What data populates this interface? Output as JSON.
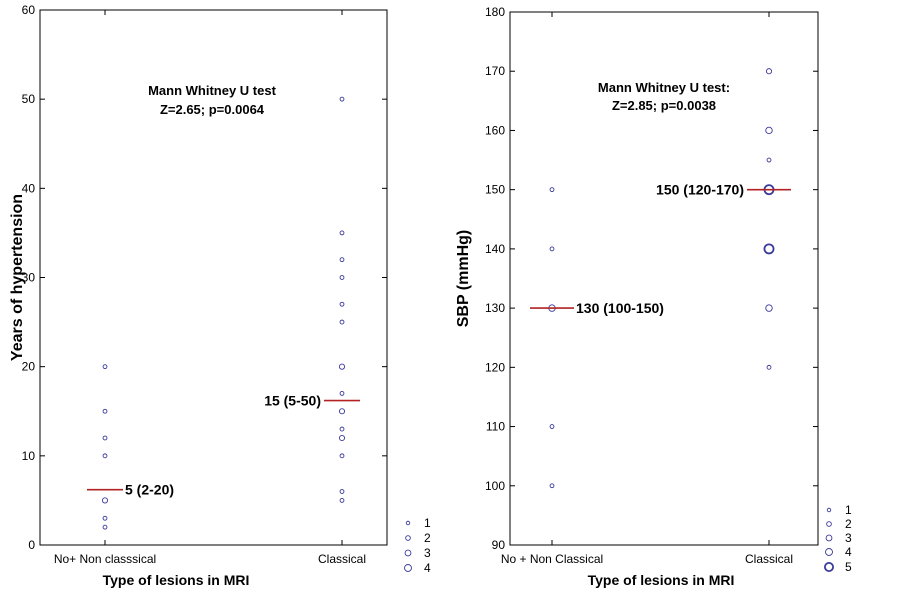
{
  "colors": {
    "marker": "#3a3a9a",
    "median": "#b22222",
    "frame": "#000000"
  },
  "chart_data": [
    {
      "type": "scatter",
      "xlabel": "Type of lesions in MRI",
      "ylabel": "Years of hypertension",
      "ylim": [
        0,
        60
      ],
      "yticks": [
        0,
        10,
        20,
        30,
        40,
        50,
        60
      ],
      "categories": [
        "No+ Non classsical",
        "Classical"
      ],
      "annotation": [
        "Mann Whitney U test",
        "Z=2.65; p=0.0064"
      ],
      "points": [
        {
          "category": "No+ Non classsical",
          "y": 20,
          "count": 1
        },
        {
          "category": "No+ Non classsical",
          "y": 15,
          "count": 1
        },
        {
          "category": "No+ Non classsical",
          "y": 12,
          "count": 1
        },
        {
          "category": "No+ Non classsical",
          "y": 10,
          "count": 1
        },
        {
          "category": "No+ Non classsical",
          "y": 5,
          "count": 2
        },
        {
          "category": "No+ Non classsical",
          "y": 3,
          "count": 1
        },
        {
          "category": "No+ Non classsical",
          "y": 2,
          "count": 1
        },
        {
          "category": "Classical",
          "y": 50,
          "count": 1
        },
        {
          "category": "Classical",
          "y": 35,
          "count": 1
        },
        {
          "category": "Classical",
          "y": 32,
          "count": 1
        },
        {
          "category": "Classical",
          "y": 30,
          "count": 1
        },
        {
          "category": "Classical",
          "y": 27,
          "count": 1
        },
        {
          "category": "Classical",
          "y": 25,
          "count": 1
        },
        {
          "category": "Classical",
          "y": 20,
          "count": 2
        },
        {
          "category": "Classical",
          "y": 17,
          "count": 1
        },
        {
          "category": "Classical",
          "y": 15,
          "count": 2
        },
        {
          "category": "Classical",
          "y": 13,
          "count": 1
        },
        {
          "category": "Classical",
          "y": 12,
          "count": 2
        },
        {
          "category": "Classical",
          "y": 10,
          "count": 1
        },
        {
          "category": "Classical",
          "y": 6,
          "count": 1
        },
        {
          "category": "Classical",
          "y": 5,
          "count": 1
        }
      ],
      "medians": [
        {
          "category": "No+ Non classsical",
          "y": 6.2,
          "label": "5 (2-20)",
          "label_side": "right"
        },
        {
          "category": "Classical",
          "y": 16.2,
          "label": "15 (5-50)",
          "label_side": "left"
        }
      ],
      "legend": [
        "1",
        "2",
        "3",
        "4"
      ]
    },
    {
      "type": "scatter",
      "xlabel": "Type of lesions in MRI",
      "ylabel": "SBP (mmHg)",
      "ylim": [
        90,
        180
      ],
      "yticks": [
        90,
        100,
        110,
        120,
        130,
        140,
        150,
        160,
        170,
        180
      ],
      "categories": [
        "No + Non Classical",
        "Classical"
      ],
      "annotation": [
        "Mann Whitney U test:",
        "Z=2.85; p=0.0038"
      ],
      "points": [
        {
          "category": "No + Non Classical",
          "y": 150,
          "count": 1
        },
        {
          "category": "No + Non Classical",
          "y": 140,
          "count": 1
        },
        {
          "category": "No + Non Classical",
          "y": 130,
          "count": 3
        },
        {
          "category": "No + Non Classical",
          "y": 110,
          "count": 1
        },
        {
          "category": "No + Non Classical",
          "y": 100,
          "count": 1
        },
        {
          "category": "Classical",
          "y": 170,
          "count": 2
        },
        {
          "category": "Classical",
          "y": 160,
          "count": 3
        },
        {
          "category": "Classical",
          "y": 155,
          "count": 1
        },
        {
          "category": "Classical",
          "y": 150,
          "count": 5
        },
        {
          "category": "Classical",
          "y": 140,
          "count": 5
        },
        {
          "category": "Classical",
          "y": 130,
          "count": 3
        },
        {
          "category": "Classical",
          "y": 120,
          "count": 1
        }
      ],
      "medians": [
        {
          "category": "No + Non Classical",
          "y": 130,
          "label": "130 (100-150)",
          "label_side": "right"
        },
        {
          "category": "Classical",
          "y": 150,
          "label": "150 (120-170)",
          "label_side": "left"
        }
      ],
      "legend": [
        "1",
        "2",
        "3",
        "4",
        "5"
      ]
    }
  ]
}
